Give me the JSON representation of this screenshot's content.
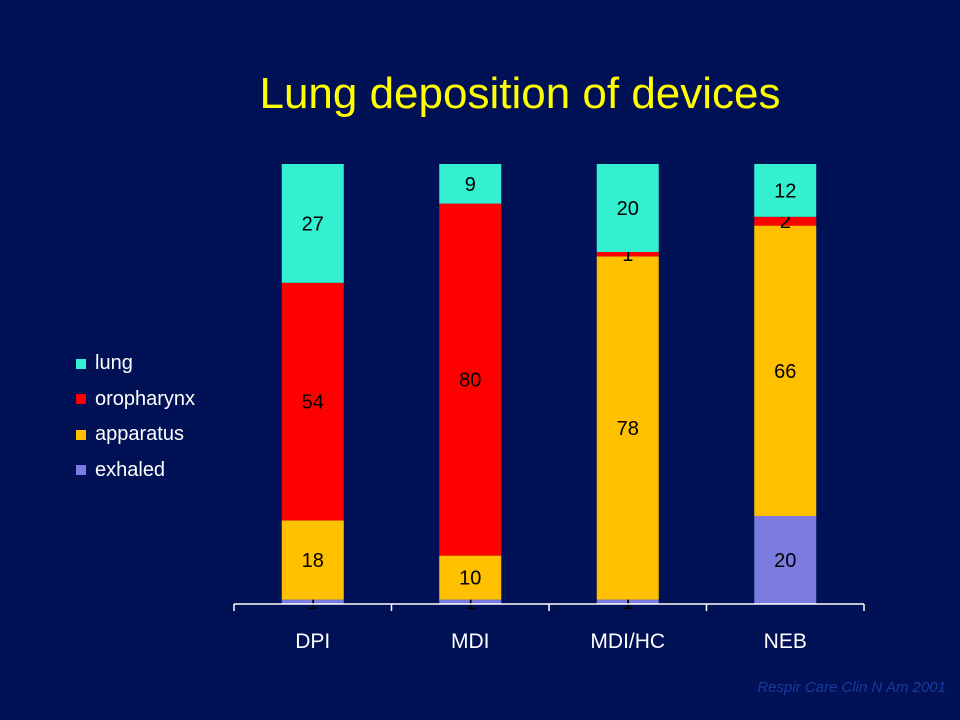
{
  "slide": {
    "title": "Lung deposition of devices",
    "source": "Respir Care Clin N Am 2001",
    "background": "#001155",
    "title_color": "#ffff00"
  },
  "chart_data": {
    "type": "bar",
    "stacked": true,
    "title": "",
    "xlabel": "",
    "ylabel": "",
    "ylim": [
      0,
      100
    ],
    "grid": false,
    "legend_position": "left",
    "categories": [
      "DPI",
      "MDI",
      "MDI/HC",
      "NEB"
    ],
    "series": [
      {
        "name": "exhaled",
        "color": "#7b7be0",
        "values": [
          1,
          1,
          1,
          20
        ]
      },
      {
        "name": "apparatus",
        "color": "#ffc000",
        "values": [
          18,
          10,
          78,
          66
        ]
      },
      {
        "name": "oropharynx",
        "color": "#ff0000",
        "values": [
          54,
          80,
          1,
          2
        ]
      },
      {
        "name": "lung",
        "color": "#33f0d0",
        "values": [
          27,
          9,
          20,
          12
        ]
      }
    ]
  }
}
